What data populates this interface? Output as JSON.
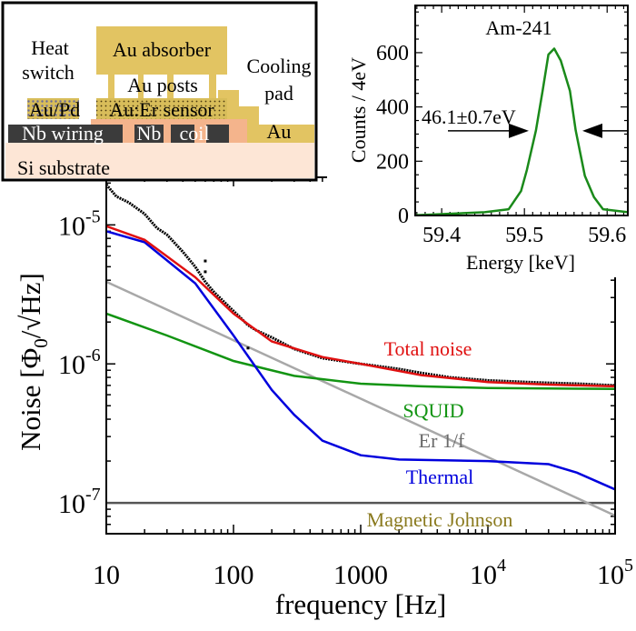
{
  "schematic": {
    "labels": {
      "heat": "Heat",
      "switch": "switch",
      "absorber": "Au absorber",
      "posts": "Au posts",
      "sensor": "Au:Er sensor",
      "aupd": "Au/Pd",
      "cooling": "Cooling",
      "pad": "pad",
      "nb_wiring": "Nb wiring",
      "nb": "Nb",
      "coil": "coil",
      "au": "Au",
      "si": "Si substrate"
    },
    "colors": {
      "gold": "#e2c462",
      "salmon": "#f4b48c",
      "substrate": "#fde6d6",
      "nb": "#3b3b3b"
    }
  },
  "chart_data": [
    {
      "type": "line",
      "xlabel": "frequency  [Hz]",
      "ylabel_parts": {
        "main": "Noise [Φ",
        "sub": "0",
        "rest": "/√Hz]"
      },
      "xscale": "log",
      "yscale": "log",
      "xlim": [
        10,
        100000
      ],
      "ylim": [
        6e-08,
        2.2e-05
      ],
      "xticks": [
        {
          "v": 10,
          "base": "10",
          "exp": ""
        },
        {
          "v": 100,
          "base": "100",
          "exp": ""
        },
        {
          "v": 1000,
          "base": "1000",
          "exp": ""
        },
        {
          "v": 10000,
          "base": "10",
          "exp": "4"
        },
        {
          "v": 100000,
          "base": "10",
          "exp": "5"
        }
      ],
      "yticks": [
        {
          "v": 1e-05,
          "base": "10",
          "exp": "-5"
        },
        {
          "v": 1e-06,
          "base": "10",
          "exp": "-6"
        },
        {
          "v": 1e-07,
          "base": "10",
          "exp": "-7"
        }
      ],
      "series": [
        {
          "name": "Thermal",
          "color": "#0000dd",
          "x": [
            10,
            20,
            50,
            100,
            200,
            300,
            500,
            1000,
            2000,
            10000,
            30000,
            50000,
            100000
          ],
          "y": [
            9e-06,
            7.5e-06,
            3.8e-06,
            1.6e-06,
            6.5e-07,
            4.3e-07,
            2.8e-07,
            2.2e-07,
            2.05e-07,
            2e-07,
            1.9e-07,
            1.65e-07,
            1.25e-07
          ]
        },
        {
          "name": "SQUID",
          "color": "#129412",
          "x": [
            10,
            30,
            100,
            300,
            1000,
            3000,
            10000,
            100000
          ],
          "y": [
            2.3e-06,
            1.6e-06,
            1.05e-06,
            8.2e-07,
            7.2e-07,
            6.9e-07,
            6.7e-07,
            6.6e-07
          ]
        },
        {
          "name": "Er 1/f",
          "color": "#a8a8a8",
          "x": [
            10,
            100000
          ],
          "y": [
            3.9e-06,
            8.1e-08
          ]
        },
        {
          "name": "Magnetic Johnson",
          "color": "#555555",
          "label_color": "#8a7a1e",
          "x": [
            10,
            100000
          ],
          "y": [
            1e-07,
            1e-07
          ]
        },
        {
          "name": "Total noise",
          "color": "#e01010",
          "x": [
            10,
            20,
            50,
            100,
            200,
            500,
            1000,
            3000,
            10000,
            30000,
            100000
          ],
          "y": [
            9.8e-06,
            7.8e-06,
            4.2e-06,
            2.3e-06,
            1.45e-06,
            1.12e-06,
            1e-06,
            8.3e-07,
            7.4e-07,
            7.1e-07,
            6.9e-07
          ]
        },
        {
          "name": "",
          "color": "#000000",
          "type": "measured",
          "x": [
            10,
            12,
            15,
            20,
            25,
            30,
            40,
            50,
            60,
            70,
            100,
            130,
            150,
            200,
            300,
            500,
            1000,
            2000,
            3000,
            5000,
            10000,
            20000,
            30000,
            50000,
            100000
          ],
          "y": [
            1.95e-05,
            1.6e-05,
            1.45e-05,
            1.2e-05,
            9.5e-06,
            8.5e-06,
            6.4e-06,
            5e-06,
            3.9e-06,
            3.3e-06,
            2.4e-06,
            1.9e-06,
            1.75e-06,
            1.55e-06,
            1.28e-06,
            1.1e-06,
            1e-06,
            9.2e-07,
            8.6e-07,
            8e-07,
            7.6e-07,
            7.4e-07,
            7.3e-07,
            7.2e-07,
            7e-07
          ],
          "outliers": [
            [
              60,
              5.5e-06
            ],
            [
              60,
              4.6e-06
            ],
            [
              130,
              1.3e-06
            ]
          ]
        }
      ]
    },
    {
      "type": "line",
      "title": "Am-241",
      "xlabel": "Energy [keV]",
      "ylabel": "Counts / 4eV",
      "xlim": [
        59.368,
        59.625
      ],
      "ylim": [
        0,
        774
      ],
      "xticks": [
        "59.4",
        "59.5",
        "59.6"
      ],
      "yticks": [
        "0",
        "200",
        "400",
        "600"
      ],
      "annotation": "46.1±0.7eV",
      "fwhm_arrow_level": 312,
      "series": [
        {
          "color": "#1a8a1a",
          "x": [
            59.368,
            59.452,
            59.481,
            59.496,
            59.503,
            59.514,
            59.522,
            59.529,
            59.536,
            59.544,
            59.555,
            59.562,
            59.573,
            59.584,
            59.595,
            59.625
          ],
          "y": [
            1,
            12,
            23,
            90,
            168,
            314,
            459,
            593,
            615,
            571,
            459,
            314,
            146,
            68,
            23,
            12
          ]
        }
      ]
    }
  ]
}
